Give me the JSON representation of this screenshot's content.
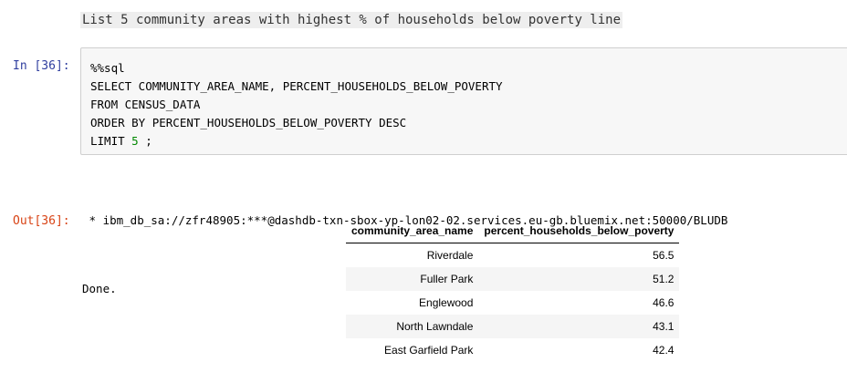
{
  "markdown": {
    "text": "List 5 community areas with highest % of households below poverty line"
  },
  "input_cell": {
    "prompt": "In [36]:",
    "code_lines": [
      "%%sql",
      "SELECT COMMUNITY_AREA_NAME, PERCENT_HOUSEHOLDS_BELOW_POVERTY",
      "FROM CENSUS_DATA",
      "ORDER BY PERCENT_HOUSEHOLDS_BELOW_POVERTY DESC"
    ],
    "limit_keyword": "LIMIT ",
    "limit_number": "5",
    "limit_suffix": " ;"
  },
  "stdout": {
    "connection": " * ibm_db_sa://zfr48905:***@dashdb-txn-sbox-yp-lon02-02.services.eu-gb.bluemix.net:50000/BLUDB",
    "status": "Done."
  },
  "output_cell": {
    "prompt": "Out[36]:"
  },
  "table": {
    "columns": [
      "community_area_name",
      "percent_households_below_poverty"
    ],
    "rows": [
      [
        "Riverdale",
        "56.5"
      ],
      [
        "Fuller Park",
        "51.2"
      ],
      [
        "Englewood",
        "46.6"
      ],
      [
        "North Lawndale",
        "43.1"
      ],
      [
        "East Garfield Park",
        "42.4"
      ]
    ]
  }
}
